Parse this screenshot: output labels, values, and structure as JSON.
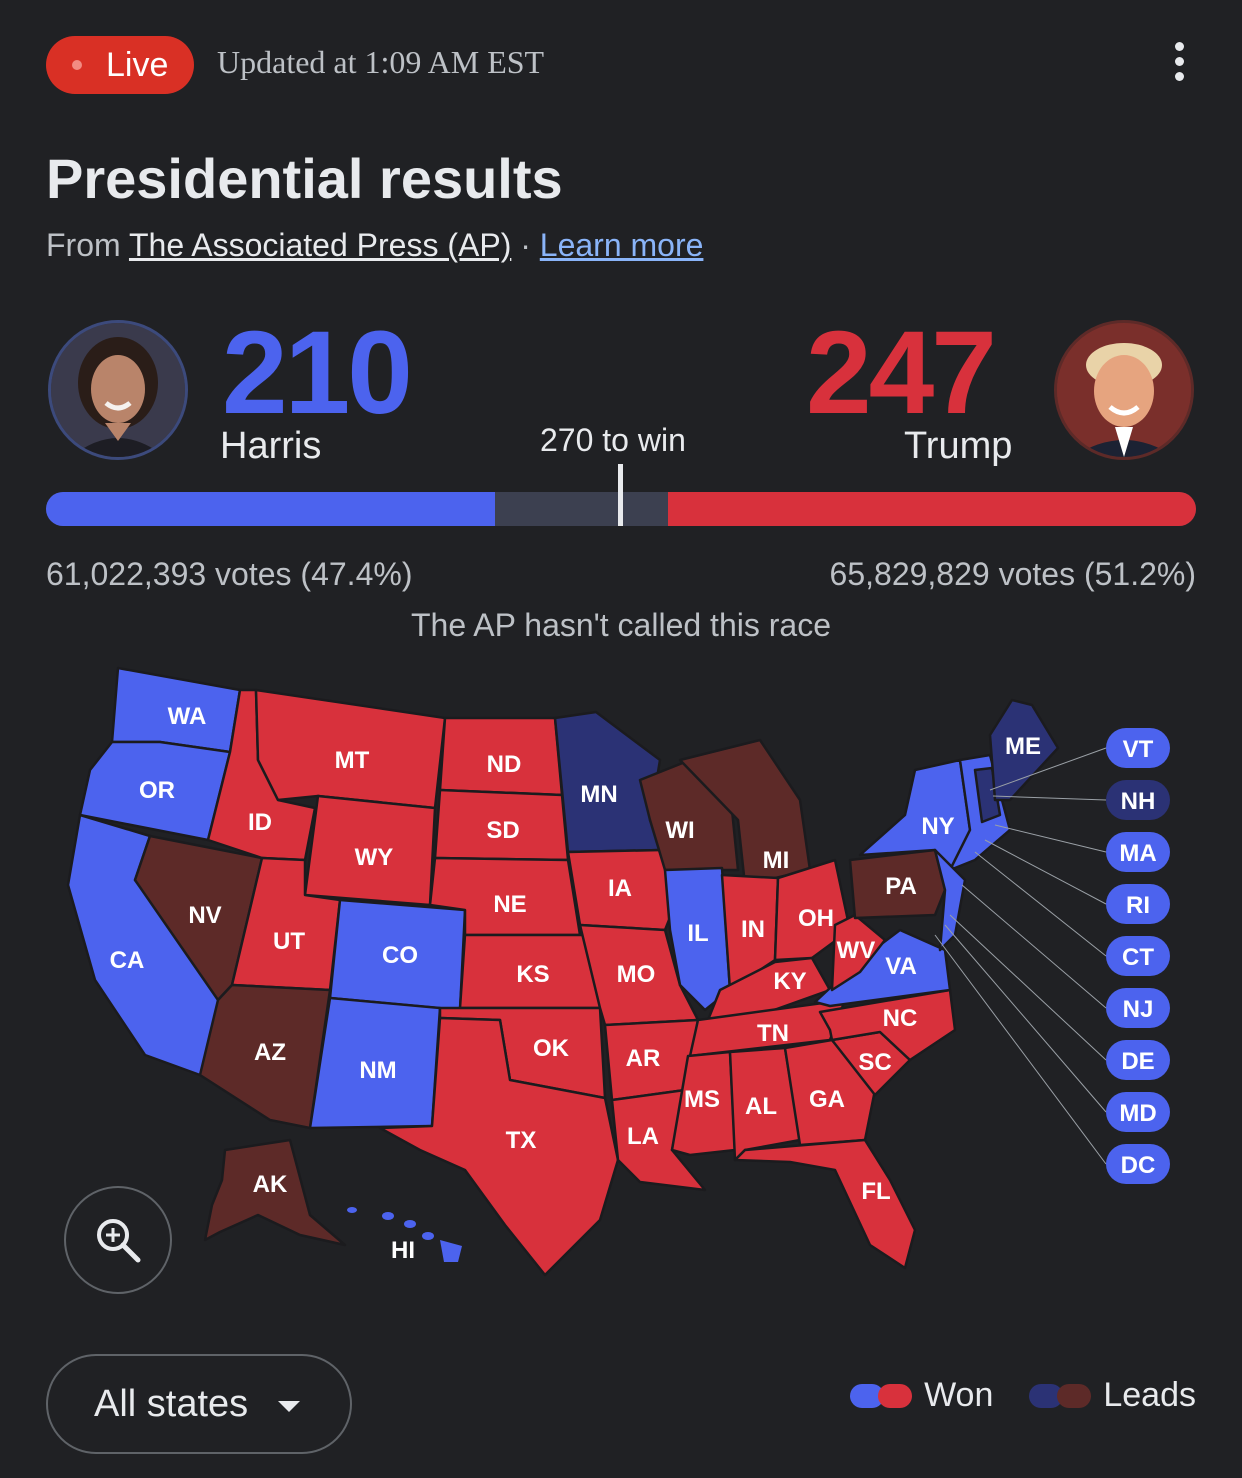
{
  "header": {
    "live_label": "Live",
    "updated": "Updated at 1:09 AM EST",
    "more_icon": "more-vert-icon"
  },
  "title": "Presidential results",
  "source": {
    "from": "From",
    "publisher": "The Associated Press (AP)",
    "sep": "·",
    "learn_more": "Learn more"
  },
  "harris": {
    "name": "Harris",
    "electoral_votes": "210",
    "votes": "61,022,393 votes (47.4%)",
    "ev_number": 210,
    "color": "#4c63ee"
  },
  "trump": {
    "name": "Trump",
    "electoral_votes": "247",
    "votes": "65,829,829 votes (51.2%)",
    "ev_number": 247,
    "color": "#d8313c"
  },
  "to_win": "270 to win",
  "to_win_number": 270,
  "total_electoral_votes": 538,
  "status": "The AP hasn't called this race",
  "colors": {
    "dem_won": "#4c63ee",
    "rep_won": "#d8313c",
    "dem_lead": "#2b3275",
    "rep_lead": "#5d2a28",
    "background": "#202124"
  },
  "states": {
    "WA": "WA",
    "OR": "OR",
    "CA": "CA",
    "NV": "NV",
    "ID": "ID",
    "MT": "MT",
    "WY": "WY",
    "UT": "UT",
    "CO": "CO",
    "AZ": "AZ",
    "NM": "NM",
    "ND": "ND",
    "SD": "SD",
    "NE": "NE",
    "KS": "KS",
    "OK": "OK",
    "TX": "TX",
    "MN": "MN",
    "IA": "IA",
    "MO": "MO",
    "AR": "AR",
    "LA": "LA",
    "WI": "WI",
    "IL": "IL",
    "MI": "MI",
    "IN": "IN",
    "OH": "OH",
    "KY": "KY",
    "TN": "TN",
    "MS": "MS",
    "AL": "AL",
    "GA": "GA",
    "FL": "FL",
    "SC": "SC",
    "NC": "NC",
    "VA": "VA",
    "WV": "WV",
    "PA": "PA",
    "NY": "NY",
    "ME": "ME",
    "AK": "AK",
    "HI": "HI"
  },
  "small_states": [
    {
      "label": "VT",
      "status": "dem_won"
    },
    {
      "label": "NH",
      "status": "dem_lead"
    },
    {
      "label": "MA",
      "status": "dem_won"
    },
    {
      "label": "RI",
      "status": "dem_won"
    },
    {
      "label": "CT",
      "status": "dem_won"
    },
    {
      "label": "NJ",
      "status": "dem_won"
    },
    {
      "label": "DE",
      "status": "dem_won"
    },
    {
      "label": "MD",
      "status": "dem_won"
    },
    {
      "label": "DC",
      "status": "dem_won"
    }
  ],
  "zoom_icon": "zoom-in-icon",
  "filter": {
    "label": "All states",
    "icon": "caret-down-icon"
  },
  "legend": {
    "won": "Won",
    "leads": "Leads"
  }
}
